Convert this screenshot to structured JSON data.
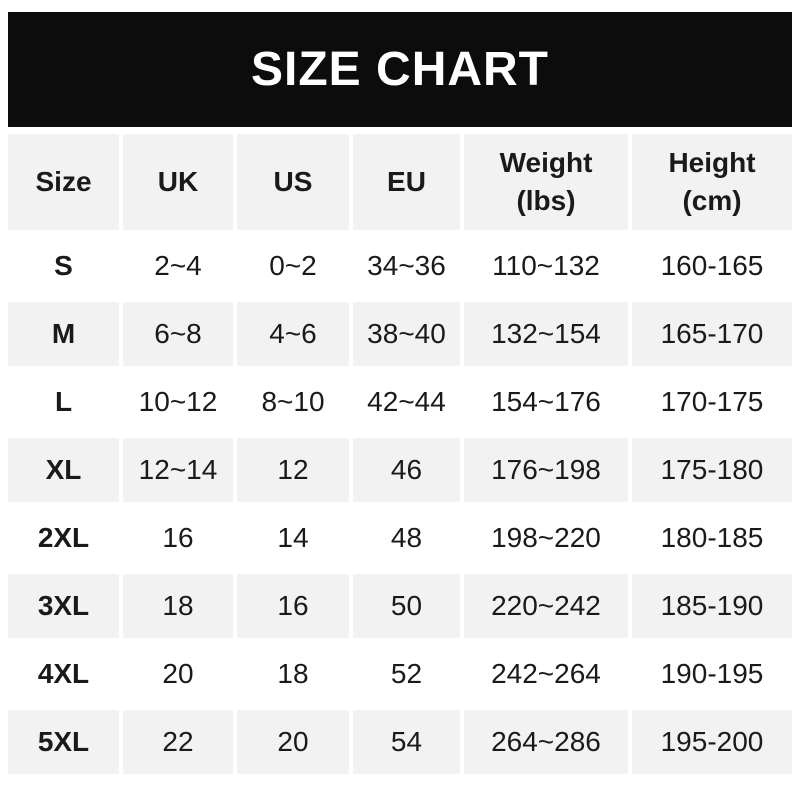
{
  "banner": {
    "title": "SIZE CHART",
    "background": "#0c0c0c",
    "text_color": "#ffffff"
  },
  "chart_data": {
    "type": "table",
    "title": "SIZE CHART",
    "columns": [
      "Size",
      "UK",
      "US",
      "EU",
      "Weight\n(lbs)",
      "Height\n(cm)"
    ],
    "column_keys": [
      "size",
      "uk",
      "us",
      "eu",
      "weight-lbs",
      "height-cm"
    ],
    "rows": [
      [
        "S",
        "2~4",
        "0~2",
        "34~36",
        "110~132",
        "160-165"
      ],
      [
        "M",
        "6~8",
        "4~6",
        "38~40",
        "132~154",
        "165-170"
      ],
      [
        "L",
        "10~12",
        "8~10",
        "42~44",
        "154~176",
        "170-175"
      ],
      [
        "XL",
        "12~14",
        "12",
        "46",
        "176~198",
        "175-180"
      ],
      [
        "2XL",
        "16",
        "14",
        "48",
        "198~220",
        "180-185"
      ],
      [
        "3XL",
        "18",
        "16",
        "50",
        "220~242",
        "185-190"
      ],
      [
        "4XL",
        "20",
        "18",
        "52",
        "242~264",
        "190-195"
      ],
      [
        "5XL",
        "22",
        "20",
        "54",
        "264~286",
        "195-200"
      ]
    ],
    "layout": {
      "striped": true,
      "stripe_color": "#f2f2f2",
      "header_background": "#f2f2f2",
      "gap_color": "#ffffff",
      "text_color": "#1a1a1a",
      "striped_row_sizes": [
        "M",
        "XL",
        "3XL",
        "5XL"
      ]
    }
  }
}
